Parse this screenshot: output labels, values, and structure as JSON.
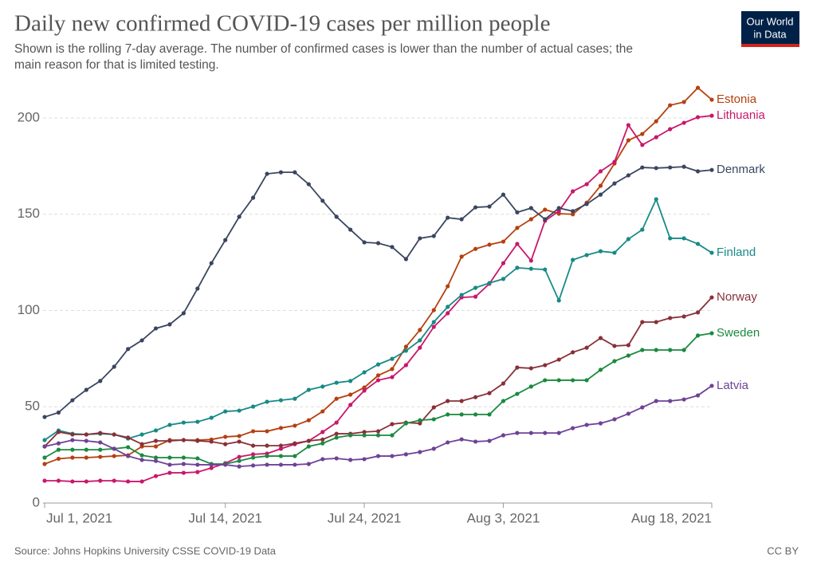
{
  "chart_data": {
    "type": "line",
    "title": "Daily new confirmed COVID-19 cases per million people",
    "subtitle": [
      "Shown is the rolling 7-day average. The number of confirmed cases is lower than the number of actual cases; the",
      "main reason for that is limited testing."
    ],
    "source": "Source: Johns Hopkins University CSSE COVID-19 Data",
    "license": "CC BY",
    "logo": [
      "Our World",
      "in Data"
    ],
    "x": [
      "2021-07-01",
      "2021-07-02",
      "2021-07-03",
      "2021-07-04",
      "2021-07-05",
      "2021-07-06",
      "2021-07-07",
      "2021-07-08",
      "2021-07-09",
      "2021-07-10",
      "2021-07-11",
      "2021-07-12",
      "2021-07-13",
      "2021-07-14",
      "2021-07-15",
      "2021-07-16",
      "2021-07-17",
      "2021-07-18",
      "2021-07-19",
      "2021-07-20",
      "2021-07-21",
      "2021-07-22",
      "2021-07-23",
      "2021-07-24",
      "2021-07-25",
      "2021-07-26",
      "2021-07-27",
      "2021-07-28",
      "2021-07-29",
      "2021-07-30",
      "2021-07-31",
      "2021-08-01",
      "2021-08-02",
      "2021-08-03",
      "2021-08-04",
      "2021-08-05",
      "2021-08-06",
      "2021-08-07",
      "2021-08-08",
      "2021-08-09",
      "2021-08-10",
      "2021-08-11",
      "2021-08-12",
      "2021-08-13",
      "2021-08-14",
      "2021-08-15",
      "2021-08-16",
      "2021-08-17",
      "2021-08-18"
    ],
    "xlim": [
      "2021-07-01",
      "2021-08-18"
    ],
    "xticks": [
      {
        "value": "2021-07-01",
        "label": "Jul 1, 2021"
      },
      {
        "value": "2021-07-14",
        "label": "Jul 14, 2021"
      },
      {
        "value": "2021-07-24",
        "label": "Jul 24, 2021"
      },
      {
        "value": "2021-08-03",
        "label": "Aug 3, 2021"
      },
      {
        "value": "2021-08-18",
        "label": "Aug 18, 2021"
      }
    ],
    "ylim": [
      0,
      200
    ],
    "yticks": [
      0,
      50,
      100,
      150,
      200
    ],
    "grid": true,
    "series": [
      {
        "name": "Estonia",
        "color": "#b5400f",
        "values": [
          20.3,
          23,
          23.6,
          23.6,
          24,
          24.4,
          24.8,
          29.4,
          29.4,
          32.7,
          32.7,
          32.7,
          33,
          34.4,
          34.8,
          37.3,
          37.3,
          39,
          40.2,
          43,
          47.6,
          54.2,
          56.3,
          60,
          66.3,
          69.6,
          81.2,
          89.9,
          100.2,
          112.6,
          128,
          132,
          134.2,
          135.8,
          142.9,
          147.4,
          152.4,
          150.3,
          150,
          156,
          164.8,
          176.4,
          188.4,
          191.7,
          198.3,
          206.6,
          208.3,
          215.7,
          209.5
        ]
      },
      {
        "name": "Lithuania",
        "color": "#c9176b",
        "values": [
          11.6,
          11.6,
          11.2,
          11.2,
          11.6,
          11.6,
          11.2,
          11.2,
          14,
          15.7,
          15.7,
          16.1,
          18.2,
          20.7,
          24,
          25.3,
          25.7,
          28.2,
          30.6,
          32.3,
          36.9,
          41.8,
          51,
          58.4,
          63.8,
          65.4,
          71.6,
          80.7,
          91.5,
          98.6,
          106.8,
          107.2,
          113.9,
          124.6,
          134.6,
          125.9,
          146.6,
          151.6,
          161.9,
          165.6,
          172.3,
          177.2,
          196.3,
          186,
          190,
          194.2,
          197.5,
          200.4,
          201.2
        ]
      },
      {
        "name": "Denmark",
        "color": "#3a4660",
        "values": [
          44.7,
          47,
          53.4,
          58.8,
          63.4,
          70.8,
          80,
          84.5,
          90.7,
          92.8,
          98.6,
          111.4,
          124.6,
          136.6,
          148.7,
          158.6,
          171,
          171.8,
          171.8,
          165.6,
          157,
          148.7,
          142,
          135.4,
          135,
          133,
          126.7,
          137.5,
          138.7,
          148.2,
          147.4,
          153.6,
          154,
          160.2,
          151,
          153.2,
          147.4,
          153.2,
          151.6,
          155.3,
          160.2,
          166,
          170.2,
          174.3,
          174,
          174.3,
          174.7,
          172.3,
          173
        ]
      },
      {
        "name": "Finland",
        "color": "#178a86",
        "values": [
          32.7,
          37.7,
          36,
          35.6,
          36,
          35.6,
          33.5,
          35.6,
          37.7,
          40.6,
          41.8,
          42.2,
          44.3,
          47.6,
          48,
          50.1,
          52.6,
          53.4,
          54.2,
          58.8,
          60.5,
          62.5,
          63.4,
          67.9,
          72,
          74.9,
          79.1,
          84.5,
          94,
          101.9,
          108.1,
          111.8,
          114.3,
          116.4,
          122.2,
          121.7,
          121.3,
          105.2,
          126.3,
          128.8,
          130.8,
          130,
          137.1,
          142,
          157.8,
          137.5,
          137.5,
          134.6,
          130
        ]
      },
      {
        "name": "Norway",
        "color": "#883039",
        "values": [
          29.4,
          36.9,
          35.6,
          35.6,
          36.4,
          35.6,
          34,
          30.6,
          32.3,
          32.3,
          32.7,
          32.3,
          31.9,
          30.6,
          31.9,
          29.8,
          29.8,
          29.8,
          31,
          32.3,
          33,
          36,
          36,
          36.9,
          37.3,
          41,
          41.8,
          41.4,
          49.7,
          53,
          53,
          55,
          57.1,
          62.1,
          70.4,
          70,
          71.6,
          74.5,
          78.3,
          80.7,
          85.7,
          81.6,
          82,
          94,
          94,
          96.1,
          96.9,
          99,
          106.8
        ]
      },
      {
        "name": "Sweden",
        "color": "#1b8a3f",
        "values": [
          23.6,
          27.7,
          27.7,
          27.7,
          27.7,
          28.2,
          29,
          24.8,
          23.6,
          23.6,
          23.6,
          23.2,
          20.3,
          20.3,
          21.9,
          23.6,
          24.4,
          24.4,
          24.4,
          29.4,
          31,
          34,
          35.2,
          35.2,
          35.2,
          35.2,
          41.4,
          43,
          43.5,
          46,
          46,
          46,
          46,
          53,
          56.7,
          60.5,
          63.8,
          63.8,
          63.8,
          63.8,
          69.2,
          73.7,
          76.6,
          79.5,
          79.5,
          79.5,
          79.5,
          87,
          88.2
        ]
      },
      {
        "name": "Latvia",
        "color": "#6e4296",
        "values": [
          29.4,
          31,
          32.7,
          32.3,
          31.5,
          28.2,
          24.4,
          22.4,
          21.9,
          19.9,
          20.3,
          19.9,
          19.9,
          19.9,
          19,
          19.5,
          19.9,
          19.9,
          19.9,
          20.3,
          22.8,
          23.2,
          22.4,
          22.8,
          24.4,
          24.4,
          25.3,
          26.5,
          28.2,
          31.5,
          33.1,
          31.9,
          32.3,
          35.2,
          36.4,
          36.4,
          36.4,
          36.4,
          38.9,
          40.6,
          41.4,
          43.5,
          46.4,
          49.7,
          53,
          53,
          53.8,
          55.9,
          60.9
        ]
      }
    ]
  }
}
